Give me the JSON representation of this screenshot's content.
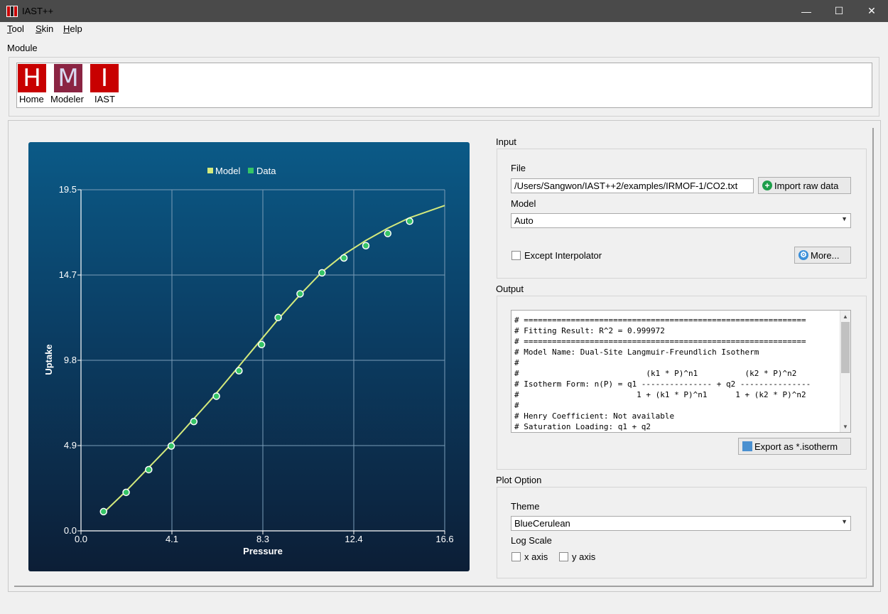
{
  "window": {
    "title": "IAST++",
    "minimize": "—",
    "maximize": "☐",
    "close": "✕"
  },
  "menu": {
    "items": [
      "Tool",
      "Skin",
      "Help"
    ]
  },
  "module": {
    "label": "Module",
    "buttons": [
      {
        "letter": "H",
        "label": "Home",
        "color": "#c80000"
      },
      {
        "letter": "M",
        "label": "Modeler",
        "color": "#8b2443"
      },
      {
        "letter": "I",
        "label": "IAST",
        "color": "#c80000"
      }
    ]
  },
  "input": {
    "title": "Input",
    "file_label": "File",
    "file_path": "/Users/Sangwon/IAST++2/examples/IRMOF-1/CO2.txt",
    "import_button": "Import raw data",
    "model_label": "Model",
    "model_value": "Auto",
    "except_interpolator": "Except Interpolator",
    "more_button": "More..."
  },
  "output": {
    "title": "Output",
    "text": "# ============================================================\n# Fitting Result: R^2 = 0.999972\n# ============================================================\n# Model Name: Dual-Site Langmuir-Freundlich Isotherm\n#\n#                           (k1 * P)^n1          (k2 * P)^n2\n# Isotherm Form: n(P) = q1 --------------- + q2 ---------------\n#                         1 + (k1 * P)^n1      1 + (k2 * P)^n2\n#\n# Henry Coefficient: Not available\n# Saturation Loading: q1 + q2",
    "export_button": "Export as *.isotherm"
  },
  "plot_option": {
    "title": "Plot Option",
    "theme_label": "Theme",
    "theme_value": "BlueCerulean",
    "log_scale_label": "Log Scale",
    "x_axis": "x axis",
    "y_axis": "y axis"
  },
  "chart_data": {
    "type": "line",
    "xlabel": "Pressure",
    "ylabel": "Uptake",
    "xlim": [
      0.0,
      16.6
    ],
    "ylim": [
      0.0,
      19.5
    ],
    "x_ticks": [
      "0.0",
      "4.1",
      "8.3",
      "12.4",
      "16.6"
    ],
    "y_ticks": [
      "0.0",
      "4.9",
      "9.8",
      "14.7",
      "19.5"
    ],
    "legend_position": "top",
    "grid": true,
    "series": [
      {
        "name": "Model",
        "kind": "line",
        "color": "#d4ea7c",
        "x": [
          1.0,
          2.0,
          3.0,
          4.0,
          5.0,
          6.0,
          7.0,
          8.0,
          9.0,
          10.0,
          11.0,
          12.0,
          13.0,
          14.0,
          15.0,
          16.6
        ],
        "y": [
          1.0,
          2.2,
          3.5,
          4.8,
          6.2,
          7.6,
          9.1,
          10.6,
          12.1,
          13.5,
          14.8,
          15.8,
          16.6,
          17.3,
          17.9,
          18.6
        ]
      },
      {
        "name": "Data",
        "kind": "scatter",
        "color": "#35c466",
        "x": [
          1.03,
          2.06,
          3.09,
          4.12,
          5.15,
          6.18,
          7.21,
          8.24,
          9.0,
          10.0,
          11.0,
          12.0,
          13.0,
          14.0,
          15.0
        ],
        "y": [
          1.1,
          2.2,
          3.5,
          4.85,
          6.25,
          7.7,
          9.15,
          10.65,
          12.2,
          13.55,
          14.75,
          15.6,
          16.3,
          17.0,
          17.7
        ]
      }
    ]
  }
}
